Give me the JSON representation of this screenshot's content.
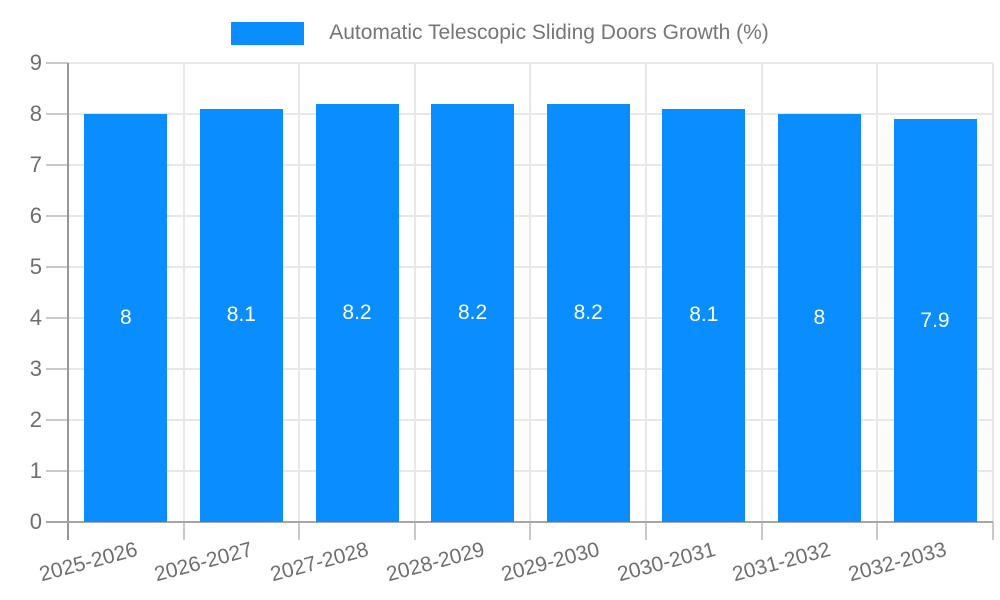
{
  "chart_data": {
    "type": "bar",
    "title": "",
    "categories": [
      "2025-2026",
      "2026-2027",
      "2027-2028",
      "2028-2029",
      "2029-2030",
      "2030-2031",
      "2031-2032",
      "2032-2033"
    ],
    "series": [
      {
        "name": "Automatic Telescopic Sliding Doors Growth (%)",
        "values": [
          8,
          8.1,
          8.2,
          8.2,
          8.2,
          8.1,
          8,
          7.9
        ],
        "value_labels": [
          "8",
          "8.1",
          "8.2",
          "8.2",
          "8.2",
          "8.1",
          "8",
          "7.9"
        ]
      }
    ],
    "xlabel": "",
    "ylabel": "",
    "ylim": [
      0,
      9
    ],
    "yticks": [
      "0",
      "1",
      "2",
      "3",
      "4",
      "5",
      "6",
      "7",
      "8",
      "9"
    ],
    "grid": true,
    "legend_position": "top",
    "colors": {
      "bar": "#0a8eff",
      "axis_text": "#6e6e6e",
      "legend_text": "#757575",
      "bar_label_text": "#ffffff",
      "gridline": "#e8e8e8",
      "tick": "#c9c9c9",
      "axis_line": "#979797",
      "baseline": "#a6a6a6",
      "background": "#ffffff"
    }
  }
}
